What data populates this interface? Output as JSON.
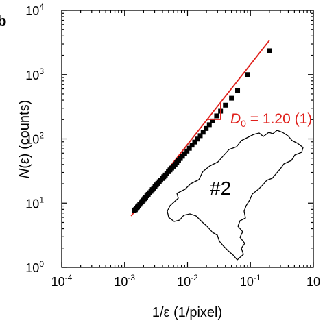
{
  "chart_data": {
    "type": "scatter",
    "panel_label": "b",
    "xlabel": "1/ε (1/pixel)",
    "ylabel_italic": "N",
    "ylabel_rest": "(ε) (counts)",
    "x_scale": "log",
    "y_scale": "log",
    "xlim": [
      0.0001,
      1
    ],
    "ylim": [
      1,
      10000
    ],
    "x_ticks": [
      {
        "base": "10",
        "exp": "-4"
      },
      {
        "base": "10",
        "exp": "-3"
      },
      {
        "base": "10",
        "exp": "-2"
      },
      {
        "base": "10",
        "exp": "-1"
      },
      {
        "base": "10",
        "exp": ""
      }
    ],
    "y_ticks": [
      {
        "base": "10",
        "exp": "0"
      },
      {
        "base": "10",
        "exp": "1"
      },
      {
        "base": "10",
        "exp": "2"
      },
      {
        "base": "10",
        "exp": "3"
      },
      {
        "base": "10",
        "exp": "4"
      }
    ],
    "grid": false,
    "marker_color": "#000000",
    "fit_color": "#e0201b",
    "series": [
      {
        "marker": "square",
        "x": [
          0.00143,
          0.00148,
          0.00154,
          0.0016,
          0.00167,
          0.00174,
          0.00182,
          0.0019,
          0.00198,
          0.00207,
          0.00216,
          0.00226,
          0.00237,
          0.00249,
          0.00262,
          0.00275,
          0.00289,
          0.00304,
          0.0032,
          0.00337,
          0.00355,
          0.00375,
          0.00396,
          0.00419,
          0.00443,
          0.00469,
          0.00497,
          0.00527,
          0.0056,
          0.00595,
          0.00633,
          0.00674,
          0.0072,
          0.0077,
          0.0083,
          0.009,
          0.0098,
          0.0107,
          0.0118,
          0.013,
          0.0143,
          0.0159,
          0.0177,
          0.0198,
          0.0222,
          0.025,
          0.029,
          0.0335,
          0.04,
          0.05,
          0.0625,
          0.0909,
          0.2
        ],
        "y": [
          7.6,
          7.9,
          8.3,
          8.7,
          9.1,
          9.6,
          10.1,
          10.6,
          11.1,
          11.7,
          12.3,
          13.0,
          13.7,
          14.5,
          15.3,
          16.2,
          17.1,
          18.1,
          19.2,
          20.3,
          21.5,
          22.8,
          24.2,
          25.7,
          27.3,
          29.0,
          30.9,
          32.9,
          35.1,
          37.5,
          40.1,
          42.9,
          46.0,
          49.5,
          53.7,
          58.6,
          64.6,
          71.4,
          79.9,
          89.2,
          99.4,
          112,
          127,
          145,
          166,
          190,
          228,
          270,
          335,
          430,
          560,
          1000,
          2350
        ]
      }
    ],
    "fit_line": {
      "x": [
        0.00127,
        0.2
      ],
      "y": [
        6.3,
        3400
      ]
    },
    "annotation": {
      "italic": "D",
      "subscript": "0",
      "text": " = 1.20 (1)"
    },
    "inset_label": "#2"
  }
}
